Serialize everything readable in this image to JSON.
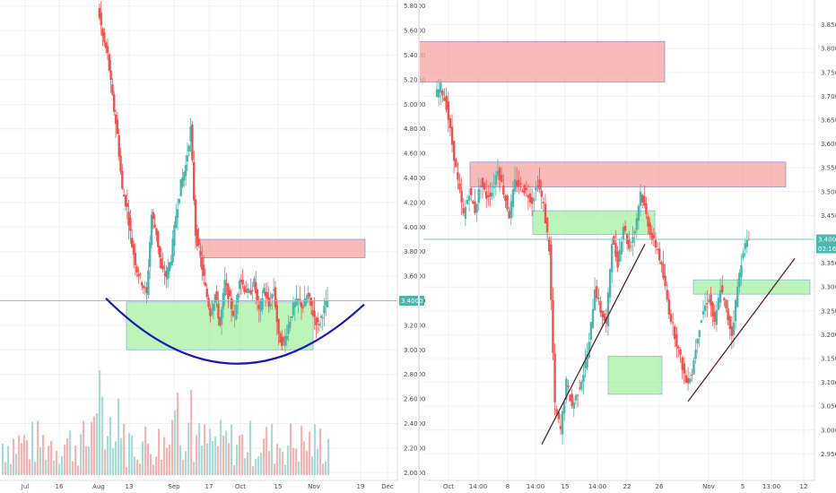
{
  "chart_data": [
    {
      "type": "candlestick",
      "y_ticks": [
        "2.0000",
        "2.2000",
        "2.4000",
        "2.6000",
        "2.8000",
        "3.0000",
        "3.2000",
        "3.4000",
        "3.6000",
        "3.8000",
        "4.0000",
        "4.2000",
        "4.4000",
        "4.6000",
        "4.8000",
        "5.0000",
        "5.2000",
        "5.4000",
        "5.6000",
        "5.8000"
      ],
      "ylim": [
        1.98,
        5.82
      ],
      "x_ticks": [
        "Jul",
        "16",
        "Aug",
        "13",
        "Sep",
        "17",
        "Oct",
        "15",
        "Nov",
        "19",
        "Dec"
      ],
      "last_price_label": "3.4000",
      "last_price": 3.4,
      "series_colors": {
        "up": "#4db6ac",
        "down": "#ef5350"
      },
      "zones": [
        {
          "kind": "resistance",
          "color": "#f7a3a3",
          "ylim": [
            3.75,
            3.9
          ]
        },
        {
          "kind": "support",
          "color": "#a7f0a2",
          "ylim": [
            3.0,
            3.39
          ]
        }
      ],
      "pattern": {
        "kind": "rounded-bottom",
        "color": "#1a1ab8",
        "low": 2.9
      },
      "price_path": [
        5.8,
        5.55,
        5.4,
        5.05,
        4.75,
        4.3,
        4.15,
        3.85,
        3.65,
        3.55,
        3.45,
        4.1,
        3.95,
        3.65,
        3.6,
        3.75,
        4.1,
        4.35,
        4.5,
        4.8,
        3.95,
        3.75,
        3.5,
        3.3,
        3.45,
        3.2,
        3.55,
        3.4,
        3.25,
        3.6,
        3.5,
        3.45,
        3.55,
        3.3,
        3.5,
        3.35,
        3.5,
        3.1,
        3.05,
        3.2,
        3.35,
        3.4,
        3.35,
        3.45,
        3.3,
        3.2,
        3.3,
        3.4
      ]
    },
    {
      "type": "candlestick",
      "y_ticks": [
        "2.9500",
        "3.0000",
        "3.0500",
        "3.1000",
        "3.1500",
        "3.2000",
        "3.2500",
        "3.3000",
        "3.3500",
        "3.4000",
        "3.4500",
        "3.5000",
        "3.5500",
        "3.6000",
        "3.6500",
        "3.7000",
        "3.7500",
        "3.8000",
        "3.8500"
      ],
      "ylim": [
        2.93,
        3.87
      ],
      "x_ticks": [
        "Oct",
        "14:00",
        "8",
        "14:00",
        "15",
        "14:00",
        "22",
        "26",
        "Nov",
        "5",
        "13:00",
        "12"
      ],
      "last_price_label": "3.4000",
      "countdown_label": "02:16:24",
      "last_price": 3.4,
      "series_colors": {
        "up": "#4db6ac",
        "down": "#ef5350"
      },
      "zones": [
        {
          "kind": "resistance",
          "color": "#f7a3a3",
          "ylim": [
            3.73,
            3.815
          ]
        },
        {
          "kind": "resistance",
          "color": "#f7a3a3",
          "ylim": [
            3.51,
            3.562
          ]
        },
        {
          "kind": "support",
          "color": "#a7f0a2",
          "ylim": [
            3.41,
            3.46
          ]
        },
        {
          "kind": "support",
          "color": "#a7f0a2",
          "ylim": [
            3.285,
            3.315
          ]
        },
        {
          "kind": "support",
          "color": "#a7f0a2",
          "ylim": [
            3.075,
            3.155
          ]
        }
      ],
      "trendline_color": "#5b1f33",
      "price_path": [
        3.7,
        3.72,
        3.68,
        3.6,
        3.52,
        3.45,
        3.5,
        3.46,
        3.52,
        3.49,
        3.5,
        3.55,
        3.5,
        3.45,
        3.52,
        3.51,
        3.5,
        3.48,
        3.52,
        3.47,
        3.38,
        3.05,
        3.0,
        3.1,
        3.05,
        3.08,
        3.12,
        3.18,
        3.3,
        3.25,
        3.22,
        3.4,
        3.35,
        3.43,
        3.38,
        3.42,
        3.5,
        3.45,
        3.4,
        3.38,
        3.32,
        3.25,
        3.2,
        3.15,
        3.1,
        3.12,
        3.2,
        3.25,
        3.28,
        3.22,
        3.3,
        3.25,
        3.2,
        3.3,
        3.38,
        3.4
      ]
    }
  ]
}
